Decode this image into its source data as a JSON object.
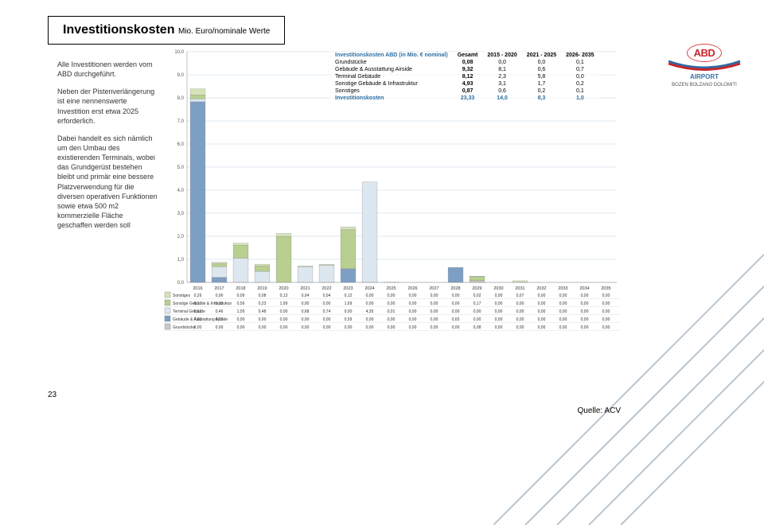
{
  "title": {
    "main": "Investitionskosten",
    "sub": "Mio. Euro/nominale Werte"
  },
  "leftText": [
    "Alle Investitionen werden vom ABD durchgeführt.",
    "Neben der Pistenverlängerung ist eine nennenswerte Investition erst etwa 2025 erforderlich.",
    "Dabei handelt es sich nämlich um den Umbau des existierenden Terminals, wobei das Grundgerüst bestehen bleibt und primär eine bessere Platzverwendung für die diversen operativen Funktionen sowie etwa 500 m2 kommerzielle Fläche geschaffen werden soll"
  ],
  "summary": {
    "header": [
      "Investitionskosten ABD (in Mio. € nominal)",
      "Gesamt",
      "2015 - 2020",
      "2021 - 2025",
      "2026- 2035"
    ],
    "rows": [
      [
        "Grundstücke",
        "0,08",
        "0,0",
        "0,0",
        "0,1"
      ],
      [
        "Gebäude & Ausstattung Airside",
        "9,32",
        "8,1",
        "0,6",
        "0,7"
      ],
      [
        "Terminal Gebäude",
        "8,12",
        "2,3",
        "5,8",
        "0,0"
      ],
      [
        "Sonstige Gebäude & Infrastruktur",
        "4,93",
        "3,1",
        "1,7",
        "0,2"
      ],
      [
        "Sonstiges",
        "0,87",
        "0,6",
        "0,2",
        "0,1"
      ]
    ],
    "total": [
      "Investitionskosten",
      "23,33",
      "14,0",
      "8,3",
      "1,0"
    ]
  },
  "chart": {
    "type": "stacked-bar",
    "years": [
      "2016",
      "2017",
      "2018",
      "2019",
      "2020",
      "2021",
      "2022",
      "2023",
      "2024",
      "2025",
      "2026",
      "2027",
      "2028",
      "2029",
      "2030",
      "2031",
      "2032",
      "2033",
      "2034",
      "2035"
    ],
    "ylim": [
      0,
      10
    ],
    "ytick_step": 1,
    "background_color": "#ffffff",
    "grid_color": "#bfd3e6",
    "bar_colors": {
      "Sonstiges": "#d6e3b9",
      "SonstigeGebInf": "#b8cf8f",
      "TerminalGeb": "#dde7f0",
      "GebAusAirside": "#7e9fc4",
      "Grundstuecke": "#c9c9c9"
    },
    "legend_order": [
      "Sonstiges",
      "SonstigeGebInf",
      "TerminalGeb",
      "GebAusAirside",
      "Grundstuecke"
    ],
    "legend_labels": {
      "Sonstiges": "Sonstiges",
      "SonstigeGebInf": "Sonstige Gebäude & Infrastruktur",
      "TerminalGeb": "Terminal Gebäude",
      "GebAusAirside": "Gebäude & Ausstattung Airside",
      "Grundstuecke": "Grundstücke"
    },
    "series": {
      "Sonstiges": [
        0.26,
        0.06,
        0.09,
        0.08,
        0.13,
        0.04,
        0.04,
        0.12,
        0.0,
        0.0,
        0.0,
        0.0,
        0.0,
        0.02,
        0.0,
        0.07,
        0.0,
        0.0,
        0.0,
        0.0
      ],
      "SonstigeGebInf": [
        0.17,
        0.13,
        0.56,
        0.23,
        1.99,
        0.0,
        0.0,
        1.69,
        0.0,
        0.0,
        0.0,
        0.0,
        0.0,
        0.17,
        0.0,
        0.0,
        0.0,
        0.0,
        0.0,
        0.0
      ],
      "TerminalGeb": [
        0.13,
        0.46,
        1.05,
        0.48,
        0.0,
        0.68,
        0.74,
        0.0,
        4.35,
        0.01,
        0.0,
        0.0,
        0.0,
        0.0,
        0.0,
        0.0,
        0.0,
        0.0,
        0.0,
        0.0
      ],
      "GebAusAirside": [
        7.83,
        0.22,
        0.0,
        0.0,
        0.0,
        0.0,
        0.0,
        0.59,
        0.0,
        0.0,
        0.0,
        0.0,
        0.65,
        0.0,
        0.0,
        0.0,
        0.0,
        0.0,
        0.0,
        0.0
      ],
      "Grundstuecke": [
        0.0,
        0.0,
        0.0,
        0.0,
        0.0,
        0.0,
        0.0,
        0.0,
        0.0,
        0.0,
        0.0,
        0.0,
        0.0,
        0.08,
        0.0,
        0.0,
        0.0,
        0.0,
        0.0,
        0.0
      ]
    }
  },
  "logo": {
    "brand": "ABD",
    "airport": "AIRPORT",
    "cities": "BOZEN BOLZANO DOLOMITI"
  },
  "pageNumber": "23",
  "source": "Quelle: ACV"
}
